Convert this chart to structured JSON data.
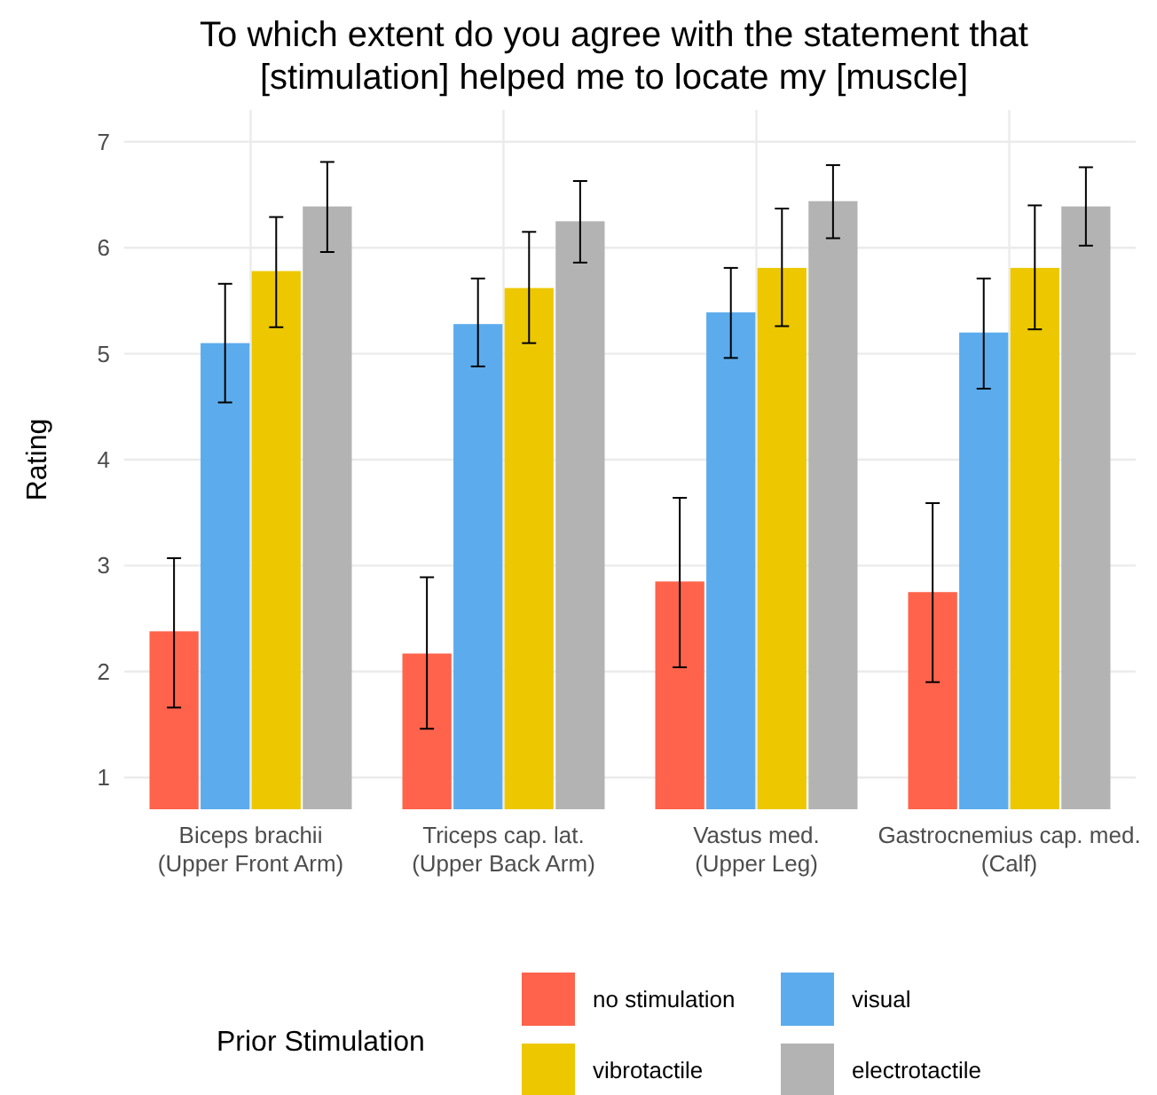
{
  "chart_data": {
    "type": "bar",
    "title": "To which extent do you agree with the statement that\n[stimulation] helped me to locate my [muscle]",
    "ylabel": "Rating",
    "legend_title": "Prior Stimulation",
    "categories": [
      "Biceps brachii\n(Upper Front Arm)",
      "Triceps cap. lat.\n(Upper Back Arm)",
      "Vastus med.\n(Upper Leg)",
      "Gastrocnemius cap. med.\n(Calf)"
    ],
    "series": [
      {
        "name": "no stimulation",
        "color": "#ff634b",
        "values": [
          2.38,
          2.17,
          2.85,
          2.75
        ],
        "errors": [
          [
            1.66,
            3.07
          ],
          [
            1.46,
            2.89
          ],
          [
            2.04,
            3.64
          ],
          [
            1.9,
            3.59
          ]
        ]
      },
      {
        "name": "visual",
        "color": "#5caced",
        "values": [
          5.1,
          5.28,
          5.39,
          5.2
        ],
        "errors": [
          [
            4.54,
            5.66
          ],
          [
            4.88,
            5.71
          ],
          [
            4.96,
            5.81
          ],
          [
            4.67,
            5.71
          ]
        ]
      },
      {
        "name": "vibrotactile",
        "color": "#edc800",
        "values": [
          5.78,
          5.62,
          5.81,
          5.81
        ],
        "errors": [
          [
            5.25,
            6.29
          ],
          [
            5.1,
            6.15
          ],
          [
            5.26,
            6.37
          ],
          [
            5.23,
            6.4
          ]
        ]
      },
      {
        "name": "electrotactile",
        "color": "#b3b3b3",
        "values": [
          6.39,
          6.25,
          6.44,
          6.39
        ],
        "errors": [
          [
            5.96,
            6.81
          ],
          [
            5.86,
            6.63
          ],
          [
            6.09,
            6.78
          ],
          [
            6.02,
            6.76
          ]
        ]
      }
    ],
    "ylim": [
      0.7,
      7.3
    ],
    "yticks": [
      1,
      2,
      3,
      4,
      5,
      6,
      7
    ],
    "grid": true,
    "legend": "bottom"
  }
}
